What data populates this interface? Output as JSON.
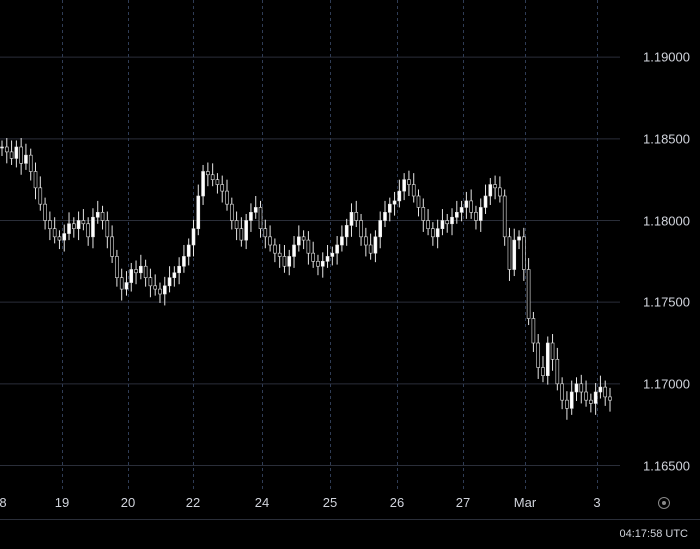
{
  "chart_data": {
    "type": "candlestick",
    "price_ticks": [
      "1.19000",
      "1.18500",
      "1.18000",
      "1.17500",
      "1.17000",
      "1.16500"
    ],
    "time_ticks": [
      "8",
      "19",
      "20",
      "22",
      "24",
      "25",
      "26",
      "27",
      "Mar",
      "3"
    ],
    "ylim": [
      1.1635,
      1.1935
    ],
    "grid": true,
    "series": [
      {
        "values": [
          1.1845,
          1.1842,
          1.1838,
          1.1845,
          1.1835,
          1.184,
          1.183,
          1.182,
          1.181,
          1.18,
          1.1795,
          1.179,
          1.1788,
          1.1792,
          1.1798,
          1.1795,
          1.18,
          1.1798,
          1.179,
          1.1802,
          1.1805,
          1.18,
          1.179,
          1.1778,
          1.1765,
          1.1758,
          1.1762,
          1.177,
          1.1768,
          1.1772,
          1.1765,
          1.176,
          1.1758,
          1.1755,
          1.176,
          1.1765,
          1.1768,
          1.1772,
          1.1778,
          1.1785,
          1.1795,
          1.1815,
          1.183,
          1.1828,
          1.1825,
          1.1822,
          1.1818,
          1.181,
          1.18,
          1.1795,
          1.1788,
          1.18,
          1.1805,
          1.1808,
          1.1795,
          1.179,
          1.1785,
          1.178,
          1.1778,
          1.1772,
          1.1778,
          1.1785,
          1.179,
          1.1788,
          1.178,
          1.1775,
          1.1772,
          1.1775,
          1.1778,
          1.178,
          1.1785,
          1.179,
          1.1797,
          1.1805,
          1.18,
          1.179,
          1.1785,
          1.178,
          1.179,
          1.18,
          1.1805,
          1.181,
          1.1812,
          1.1818,
          1.1825,
          1.1822,
          1.1815,
          1.1808,
          1.18,
          1.1795,
          1.179,
          1.1795,
          1.18,
          1.1798,
          1.1802,
          1.1805,
          1.1808,
          1.1812,
          1.1805,
          1.18,
          1.1808,
          1.1815,
          1.1822,
          1.182,
          1.1815,
          1.179,
          1.177,
          1.1788,
          1.179,
          1.177,
          1.174,
          1.1725,
          1.171,
          1.1705,
          1.1725,
          1.1715,
          1.17,
          1.169,
          1.1685,
          1.1695,
          1.17,
          1.1695,
          1.169,
          1.1688,
          1.1695,
          1.1698,
          1.1692,
          1.169
        ]
      }
    ]
  },
  "status": {
    "clock": "04:17:58 UTC"
  },
  "icons": {
    "settings": "settings-icon"
  }
}
